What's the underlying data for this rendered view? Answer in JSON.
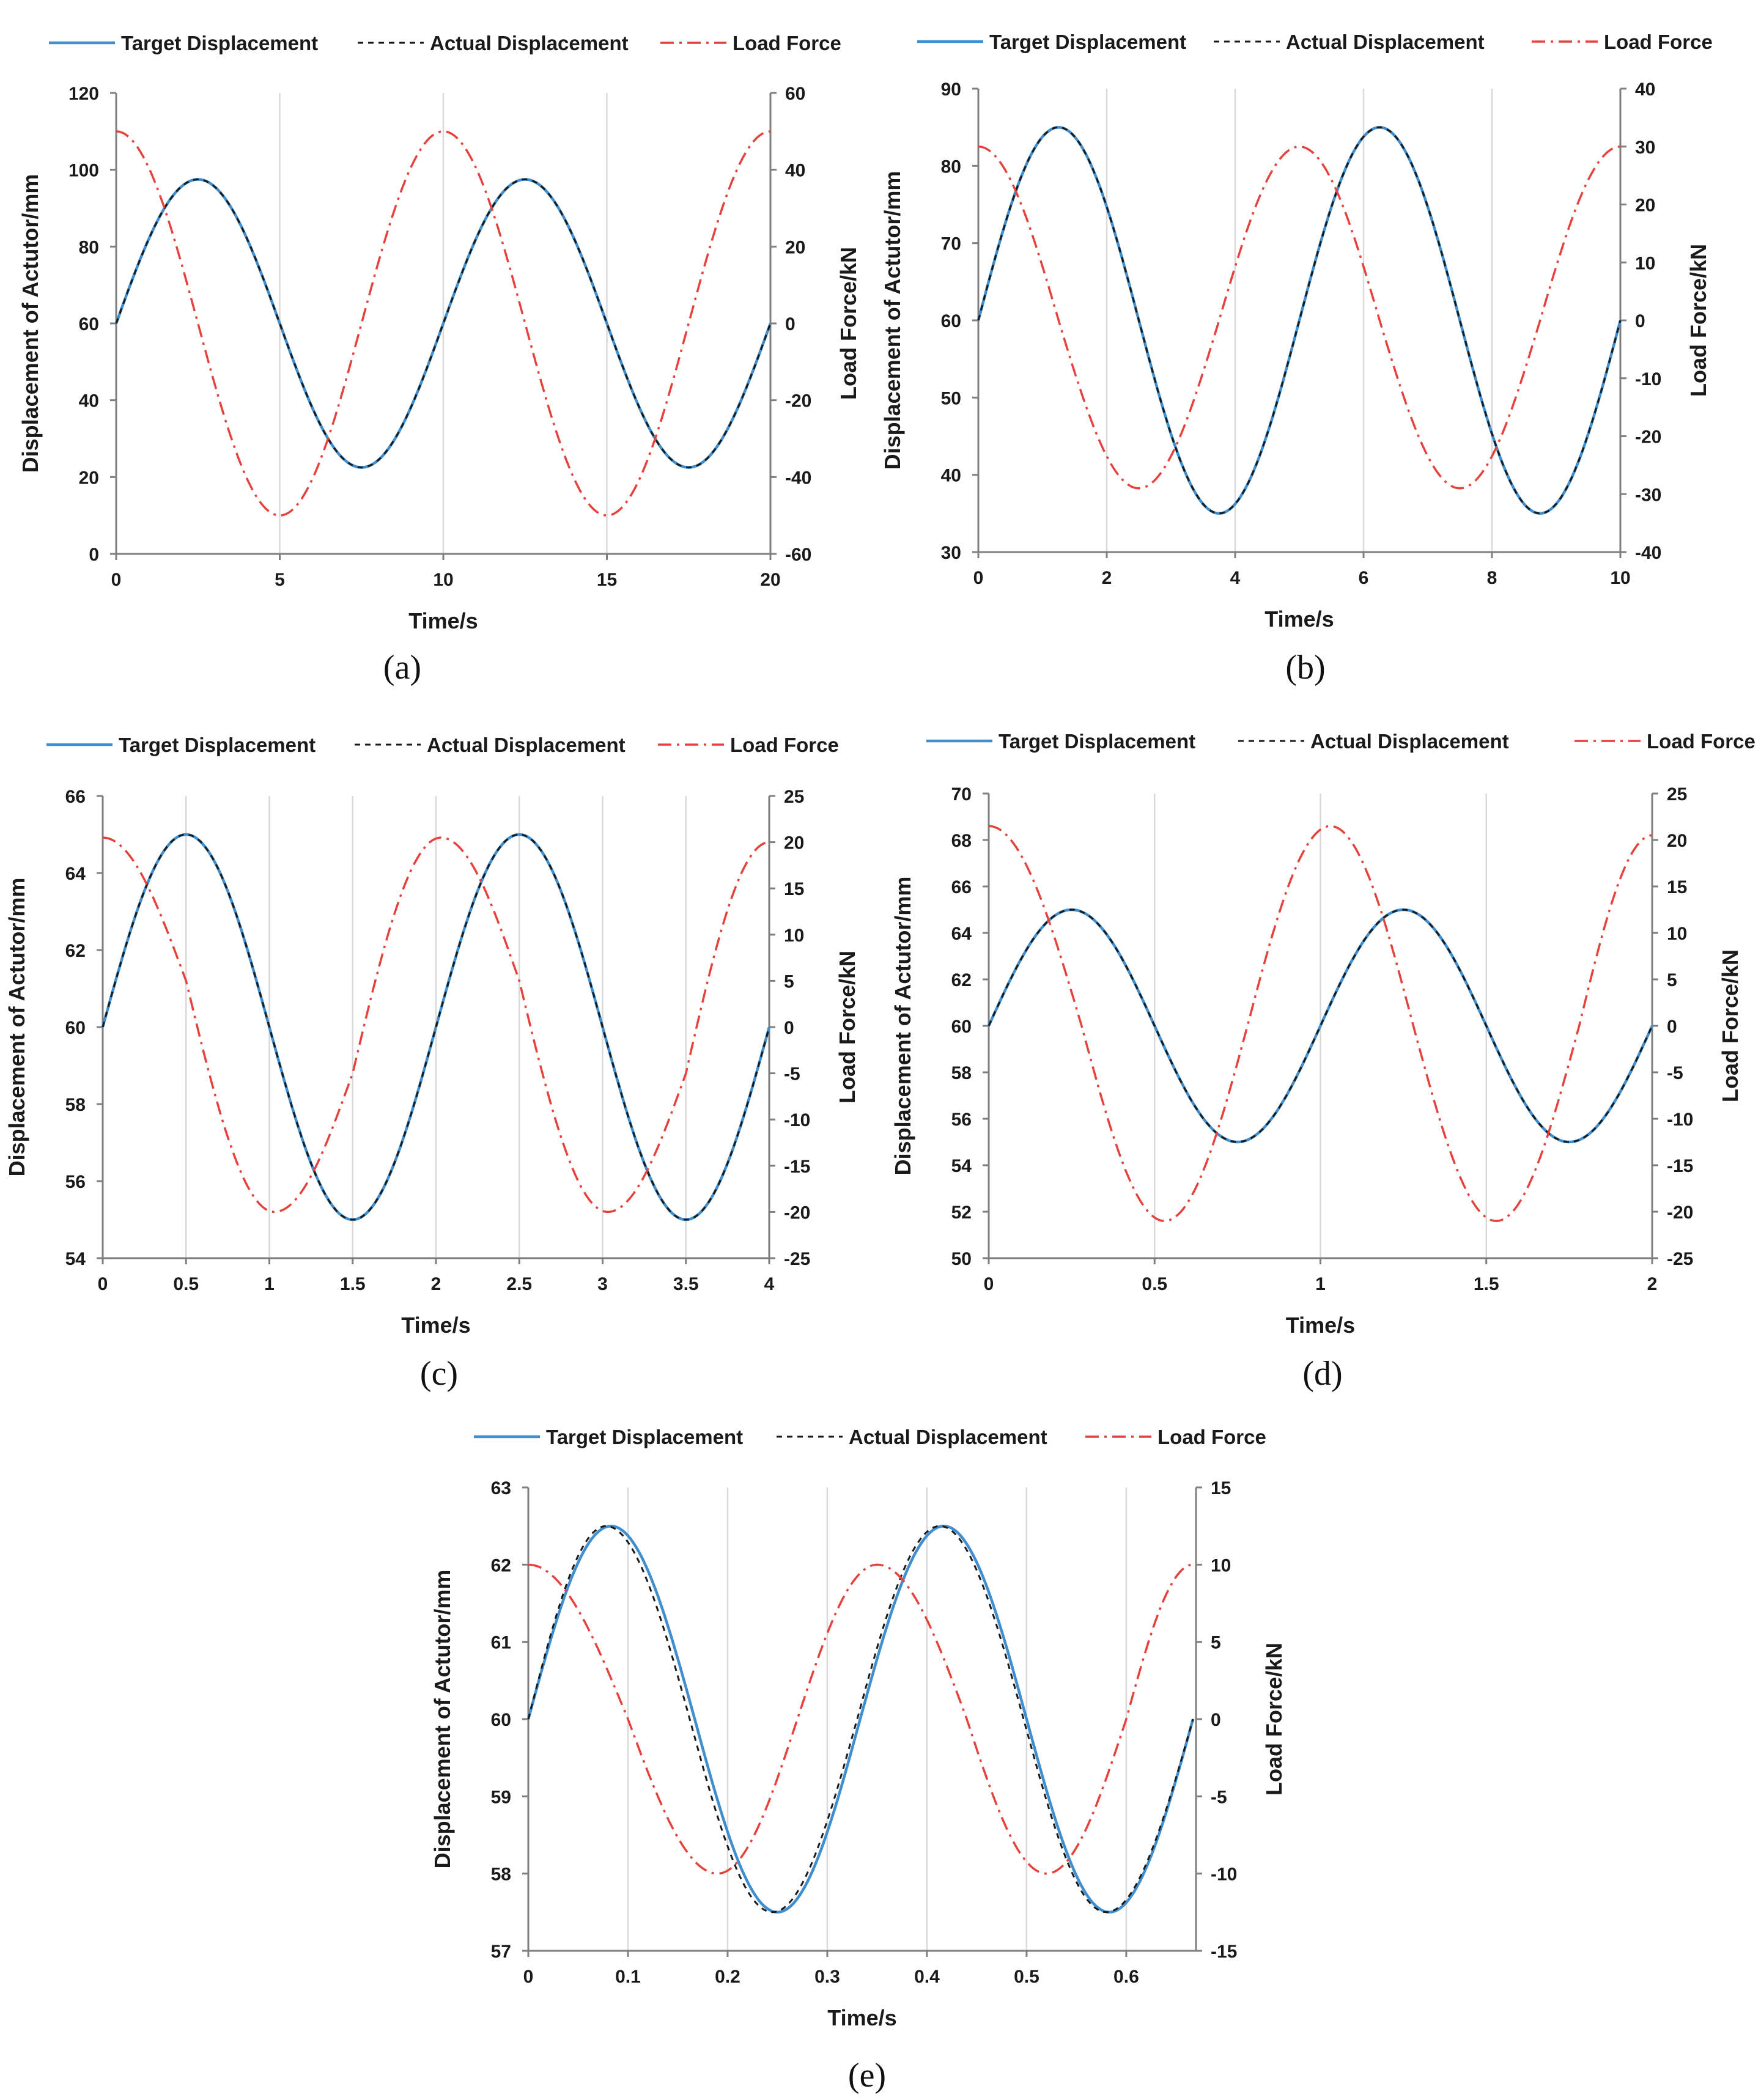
{
  "colors": {
    "target": "#3f8fd0",
    "actual": "#1a1a1a",
    "load": "#e8413c",
    "grid": "#d9d9d9",
    "axis": "#7f7f7f"
  },
  "chart_data": [
    {
      "type": "line",
      "caption": "(a)",
      "xlabel": "Time/s",
      "ylabel": "Displacement of Actutor/mm",
      "y2label": "Load Force/kN",
      "xlim": [
        0,
        20
      ],
      "xticks": [
        0,
        5,
        10,
        15,
        20
      ],
      "ylim": [
        0,
        120
      ],
      "yticks": [
        0,
        20,
        40,
        60,
        80,
        100,
        120
      ],
      "y2lim": [
        -60,
        60
      ],
      "y2ticks": [
        -60,
        -40,
        -20,
        0,
        20,
        40,
        60
      ],
      "legend": [
        "Target Displacement",
        "Actual Displacement",
        "Load Force"
      ],
      "series": [
        {
          "name": "Target Displacement",
          "axis": "left",
          "x": [
            0,
            2.5,
            5,
            7.5,
            10,
            12.5,
            15,
            17.5,
            20
          ],
          "y": [
            60,
            97.5,
            60,
            22.5,
            60,
            97.5,
            60,
            22.5,
            60
          ]
        },
        {
          "name": "Actual Displacement",
          "axis": "left",
          "x": [
            0,
            2.5,
            5,
            7.5,
            10,
            12.5,
            15,
            17.5,
            20
          ],
          "y": [
            60,
            97.5,
            60,
            22.5,
            60,
            97.5,
            60,
            22.5,
            60
          ]
        },
        {
          "name": "Load Force",
          "axis": "right",
          "x": [
            0,
            2.5,
            5,
            7.5,
            10,
            12.5,
            15,
            17.5,
            20
          ],
          "y": [
            50,
            0,
            -50,
            0,
            50,
            0,
            -50,
            0,
            50
          ]
        }
      ]
    },
    {
      "type": "line",
      "caption": "(b)",
      "xlabel": "Time/s",
      "ylabel": "Displacement of Actutor/mm",
      "y2label": "Load Force/kN",
      "xlim": [
        0,
        10
      ],
      "xticks": [
        0,
        2,
        4,
        6,
        8,
        10
      ],
      "ylim": [
        30,
        90
      ],
      "yticks": [
        30,
        40,
        50,
        60,
        70,
        80,
        90
      ],
      "y2lim": [
        -40,
        40
      ],
      "y2ticks": [
        -40,
        -30,
        -20,
        -10,
        0,
        10,
        20,
        30,
        40
      ],
      "legend": [
        "Target Displacement",
        "Actual Displacement",
        "Load Force"
      ],
      "series": [
        {
          "name": "Target Displacement",
          "axis": "left",
          "x": [
            0,
            1.25,
            2.5,
            3.75,
            5,
            6.25,
            7.5,
            8.75,
            10
          ],
          "y": [
            60,
            85,
            60,
            35,
            60,
            85,
            60,
            35,
            60
          ]
        },
        {
          "name": "Actual Displacement",
          "axis": "left",
          "x": [
            0,
            1.25,
            2.5,
            3.75,
            5,
            6.25,
            7.5,
            8.75,
            10
          ],
          "y": [
            60,
            85,
            60,
            35,
            60,
            85,
            60,
            35,
            60
          ]
        },
        {
          "name": "Load Force",
          "axis": "right",
          "x": [
            0,
            1.25,
            2.5,
            3.75,
            5,
            6.25,
            7.5,
            8.75,
            10
          ],
          "y": [
            30,
            0,
            -29,
            0,
            30,
            0,
            -29,
            0,
            30
          ]
        }
      ]
    },
    {
      "type": "line",
      "caption": "(c)",
      "xlabel": "Time/s",
      "ylabel": "Displacement of Actutor/mm",
      "y2label": "Load Force/kN",
      "xlim": [
        0,
        4
      ],
      "xticks": [
        0,
        0.5,
        1,
        1.5,
        2,
        2.5,
        3,
        3.5,
        4
      ],
      "ylim": [
        54,
        66
      ],
      "yticks": [
        54,
        56,
        58,
        60,
        62,
        64,
        66
      ],
      "y2lim": [
        -25,
        25
      ],
      "y2ticks": [
        -25,
        -20,
        -15,
        -10,
        -5,
        0,
        5,
        10,
        15,
        20,
        25
      ],
      "legend": [
        "Target Displacement",
        "Actual Displacement",
        "Load Force"
      ],
      "series": [
        {
          "name": "Target Displacement",
          "axis": "left",
          "x": [
            0,
            0.5,
            1,
            1.5,
            2,
            2.5,
            3,
            3.5,
            4
          ],
          "y": [
            60,
            65,
            60,
            55,
            60,
            65,
            60,
            55,
            60
          ]
        },
        {
          "name": "Actual Displacement",
          "axis": "left",
          "x": [
            0,
            0.5,
            1,
            1.5,
            2,
            2.5,
            3,
            3.5,
            4
          ],
          "y": [
            60,
            65,
            60,
            55,
            60,
            65,
            60,
            55,
            60
          ]
        },
        {
          "name": "Load Force",
          "axis": "right",
          "x": [
            0,
            0.5,
            1.03,
            1.5,
            2.03,
            2.5,
            3.03,
            3.5,
            4
          ],
          "y": [
            20.5,
            5,
            -20,
            -5,
            20.5,
            5,
            -20,
            -5,
            20
          ]
        }
      ]
    },
    {
      "type": "line",
      "caption": "(d)",
      "xlabel": "Time/s",
      "ylabel": "Displacement of Actutor/mm",
      "y2label": "Load Force/kN",
      "xlim": [
        0,
        2
      ],
      "xticks": [
        0,
        0.5,
        1,
        1.5,
        2
      ],
      "ylim": [
        50,
        70
      ],
      "yticks": [
        50,
        52,
        54,
        56,
        58,
        60,
        62,
        64,
        66,
        68,
        70
      ],
      "y2lim": [
        -25,
        25
      ],
      "y2ticks": [
        -25,
        -20,
        -15,
        -10,
        -5,
        0,
        5,
        10,
        15,
        20,
        25
      ],
      "legend": [
        "Target Displacement",
        "Actual Displacement",
        "Load Force"
      ],
      "series": [
        {
          "name": "Target Displacement",
          "axis": "left",
          "x": [
            0,
            0.25,
            0.5,
            0.75,
            1,
            1.25,
            1.5,
            1.75,
            2
          ],
          "y": [
            60,
            65,
            60,
            55,
            60,
            65,
            60,
            55,
            60
          ]
        },
        {
          "name": "Actual Displacement",
          "axis": "left",
          "x": [
            0,
            0.25,
            0.5,
            0.75,
            1,
            1.25,
            1.5,
            1.75,
            2
          ],
          "y": [
            60,
            65,
            60,
            55,
            60,
            65,
            60,
            55,
            60
          ]
        },
        {
          "name": "Load Force",
          "axis": "right",
          "x": [
            0,
            0.28,
            0.53,
            0.78,
            1.03,
            1.28,
            1.53,
            1.78,
            2
          ],
          "y": [
            21.5,
            0,
            -21,
            0,
            21.5,
            0,
            -21,
            0,
            20.5
          ]
        }
      ]
    },
    {
      "type": "line",
      "caption": "(e)",
      "xlabel": "Time/s",
      "ylabel": "Displacement of Actutor/mm",
      "y2label": "Load Force/kN",
      "xlim": [
        0,
        0.67
      ],
      "xticks": [
        0,
        0.1,
        0.2,
        0.3,
        0.4,
        0.5,
        0.6
      ],
      "ylim": [
        57,
        63
      ],
      "yticks": [
        57,
        58,
        59,
        60,
        61,
        62,
        63
      ],
      "y2lim": [
        -15,
        15
      ],
      "y2ticks": [
        -15,
        -10,
        -5,
        0,
        5,
        10,
        15
      ],
      "legend": [
        "Target Displacement",
        "Actual Displacement",
        "Load Force"
      ],
      "series": [
        {
          "name": "Target Displacement",
          "axis": "left",
          "x": [
            0,
            0.083,
            0.167,
            0.25,
            0.333,
            0.417,
            0.5,
            0.583,
            0.667
          ],
          "y": [
            60,
            62.5,
            60,
            57.5,
            60,
            62.5,
            60,
            57.5,
            60
          ]
        },
        {
          "name": "Actual Displacement",
          "axis": "left",
          "x": [
            0,
            0.078,
            0.162,
            0.245,
            0.33,
            0.413,
            0.497,
            0.58,
            0.667
          ],
          "y": [
            60,
            62.5,
            60,
            57.5,
            60,
            62.5,
            60,
            57.5,
            60
          ]
        },
        {
          "name": "Load Force",
          "axis": "right",
          "x": [
            0,
            0.1,
            0.19,
            0.27,
            0.35,
            0.44,
            0.52,
            0.6,
            0.667
          ],
          "y": [
            10,
            0,
            -10,
            0,
            10,
            0,
            -10,
            0,
            10
          ]
        }
      ]
    }
  ]
}
